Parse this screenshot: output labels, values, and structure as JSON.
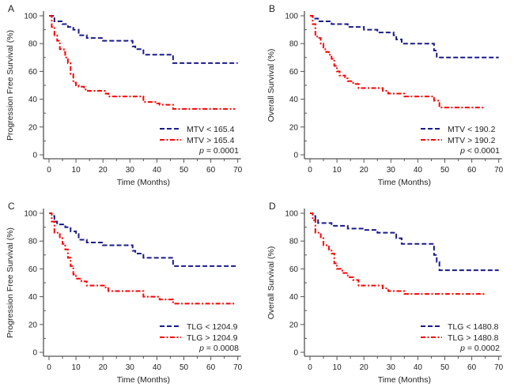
{
  "figure": {
    "colors": {
      "low_group": "#1a1a8c",
      "high_group": "#ff0000",
      "axis": "#555555"
    }
  },
  "chart_data": [
    {
      "type": "line",
      "subtype": "kaplan-meier step",
      "panel": "A",
      "xlabel": "Time (Months)",
      "ylabel": "Progression Free Survival (%)",
      "xlim": [
        0,
        70
      ],
      "ylim": [
        0,
        100
      ],
      "xticks": [
        "0",
        "10",
        "20",
        "30",
        "40",
        "50",
        "60",
        "70"
      ],
      "yticks": [
        "0",
        "20",
        "40",
        "60",
        "80",
        "100"
      ],
      "grid": false,
      "legend_position": "bottom-right",
      "p_value_label": "p",
      "p_value_text": " = 0.0001",
      "series": [
        {
          "name": "MTV < 165.4",
          "style": "dashed",
          "color": "#1a1a8c",
          "x": [
            0,
            1,
            2,
            5,
            7,
            9,
            11,
            14,
            20,
            31,
            32,
            35,
            46,
            70
          ],
          "y": [
            100,
            100,
            96,
            94,
            92,
            90,
            86,
            84,
            82,
            78,
            76,
            72,
            66,
            66
          ]
        },
        {
          "name": "MTV > 165.4",
          "style": "dash-dot",
          "color": "#ff0000",
          "x": [
            0,
            1,
            2,
            3,
            4,
            5.5,
            6,
            7,
            8,
            9,
            10,
            11,
            13,
            14,
            21,
            22,
            35,
            40,
            41,
            46,
            69
          ],
          "y": [
            100,
            92,
            86,
            82,
            76,
            74,
            70,
            66,
            58,
            52,
            50,
            49,
            47,
            46,
            44,
            42,
            38,
            37,
            36,
            33,
            33
          ]
        }
      ]
    },
    {
      "type": "line",
      "subtype": "kaplan-meier step",
      "panel": "B",
      "xlabel": "Time (Months)",
      "ylabel": "Overall Survival (%)",
      "xlim": [
        0,
        70
      ],
      "ylim": [
        0,
        100
      ],
      "xticks": [
        "0",
        "10",
        "20",
        "30",
        "40",
        "50",
        "60",
        "70"
      ],
      "yticks": [
        "0",
        "20",
        "40",
        "60",
        "80",
        "100"
      ],
      "grid": false,
      "legend_position": "bottom-right",
      "p_value_label": "p",
      "p_value_text": " < 0.0001",
      "series": [
        {
          "name": "MTV < 190.2",
          "style": "dashed",
          "color": "#1a1a8c",
          "x": [
            0,
            1,
            3,
            8,
            14,
            20,
            25,
            31,
            32,
            34,
            46,
            47,
            70
          ],
          "y": [
            100,
            98,
            96,
            94,
            92,
            90,
            88,
            86,
            83,
            80,
            75,
            70,
            70
          ]
        },
        {
          "name": "MTV > 190.2",
          "style": "dash-dot",
          "color": "#ff0000",
          "x": [
            0,
            1,
            2,
            3,
            4,
            5,
            6,
            7,
            8,
            9,
            10,
            11,
            13,
            14,
            16,
            18,
            27,
            29,
            35,
            46,
            48,
            65
          ],
          "y": [
            100,
            94,
            85,
            84,
            80,
            76,
            74,
            72,
            69,
            64,
            60,
            57,
            55,
            53,
            51,
            48,
            46,
            44,
            42,
            39,
            34,
            34
          ]
        }
      ]
    },
    {
      "type": "line",
      "subtype": "kaplan-meier step",
      "panel": "C",
      "xlabel": "Time (Months)",
      "ylabel": "Progression Free Survival (%)",
      "xlim": [
        0,
        70
      ],
      "ylim": [
        0,
        100
      ],
      "xticks": [
        "0",
        "10",
        "20",
        "30",
        "40",
        "50",
        "60",
        "70"
      ],
      "yticks": [
        "0",
        "20",
        "40",
        "60",
        "80",
        "100"
      ],
      "grid": false,
      "legend_position": "bottom-right",
      "p_value_label": "p",
      "p_value_text": " = 0.0008",
      "series": [
        {
          "name": "TLG < 1204.9",
          "style": "dashed",
          "color": "#1a1a8c",
          "x": [
            0,
            1,
            2,
            3,
            6,
            8,
            10,
            11,
            14,
            20,
            31,
            32,
            35,
            46,
            70
          ],
          "y": [
            100,
            98,
            94,
            92,
            90,
            87,
            85,
            81,
            79,
            77,
            73,
            71,
            68,
            62,
            62
          ]
        },
        {
          "name": "TLG > 1204.9",
          "style": "dash-dot",
          "color": "#ff0000",
          "x": [
            0,
            1,
            2,
            4,
            5,
            6,
            7,
            8,
            9,
            10,
            12,
            14,
            21,
            22,
            35,
            41,
            46,
            69
          ],
          "y": [
            100,
            94,
            86,
            82,
            78,
            74,
            68,
            62,
            56,
            53,
            51,
            48,
            46,
            44,
            40,
            38,
            35,
            35
          ]
        }
      ]
    },
    {
      "type": "line",
      "subtype": "kaplan-meier step",
      "panel": "D",
      "xlabel": "Time (Months)",
      "ylabel": "Overall Survival (%)",
      "xlim": [
        0,
        70
      ],
      "ylim": [
        0,
        100
      ],
      "xticks": [
        "0",
        "10",
        "20",
        "30",
        "40",
        "50",
        "60",
        "70"
      ],
      "yticks": [
        "0",
        "20",
        "40",
        "60",
        "80",
        "100"
      ],
      "grid": false,
      "legend_position": "bottom-right",
      "p_value_label": "p",
      "p_value_text": " = 0.0002",
      "series": [
        {
          "name": "TLG < 1480.8",
          "style": "dashed",
          "color": "#1a1a8c",
          "x": [
            0,
            1,
            2,
            3,
            8,
            14,
            20,
            25,
            32,
            34,
            46,
            47,
            48,
            70
          ],
          "y": [
            100,
            98,
            95,
            93,
            91,
            89,
            88,
            86,
            82,
            78,
            70,
            65,
            59,
            59
          ]
        },
        {
          "name": "TLG > 1480.8",
          "style": "dash-dot",
          "color": "#ff0000",
          "x": [
            0,
            1,
            2,
            4,
            5,
            7,
            8,
            9,
            10,
            12,
            14,
            16,
            18,
            27,
            29,
            35,
            65
          ],
          "y": [
            100,
            95,
            86,
            82,
            77,
            74,
            71,
            64,
            60,
            57,
            54,
            52,
            48,
            46,
            44,
            42,
            42
          ]
        }
      ]
    }
  ]
}
